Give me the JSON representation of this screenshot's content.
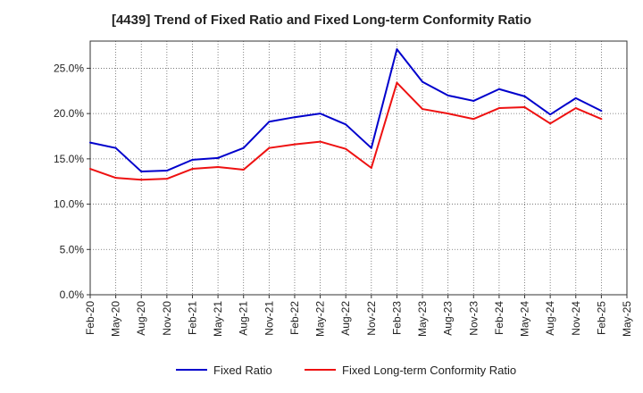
{
  "chart_data": {
    "type": "line",
    "title": "[4439]  Trend of Fixed Ratio and Fixed Long-term Conformity Ratio",
    "xlabel": "",
    "ylabel": "",
    "x_tick_labels": [
      "Feb-20",
      "May-20",
      "Aug-20",
      "Nov-20",
      "Feb-21",
      "May-21",
      "Aug-21",
      "Nov-21",
      "Feb-22",
      "May-22",
      "Aug-22",
      "Nov-22",
      "Feb-23",
      "May-23",
      "Aug-23",
      "Nov-23",
      "Feb-24",
      "May-24",
      "Aug-24",
      "Nov-24",
      "Feb-25",
      "May-25"
    ],
    "y_tick_labels": [
      "0.0%",
      "5.0%",
      "10.0%",
      "15.0%",
      "20.0%",
      "25.0%"
    ],
    "y_ticks": [
      0,
      5,
      10,
      15,
      20,
      25
    ],
    "ylim": [
      0,
      28
    ],
    "grid": true,
    "legend_position": "bottom",
    "series": [
      {
        "name": "Fixed Ratio",
        "color": "#0000cc",
        "values": [
          16.8,
          16.2,
          13.6,
          13.7,
          14.9,
          15.1,
          16.2,
          19.1,
          19.6,
          20.0,
          18.8,
          16.2,
          27.1,
          23.5,
          22.0,
          21.4,
          22.7,
          21.9,
          19.9,
          21.7,
          20.3
        ]
      },
      {
        "name": "Fixed Long-term Conformity Ratio",
        "color": "#ee1111",
        "values": [
          13.9,
          12.9,
          12.7,
          12.8,
          13.9,
          14.1,
          13.8,
          16.2,
          16.6,
          16.9,
          16.1,
          14.0,
          23.4,
          20.5,
          20.0,
          19.4,
          20.6,
          20.7,
          18.9,
          20.6,
          19.4
        ]
      }
    ]
  }
}
